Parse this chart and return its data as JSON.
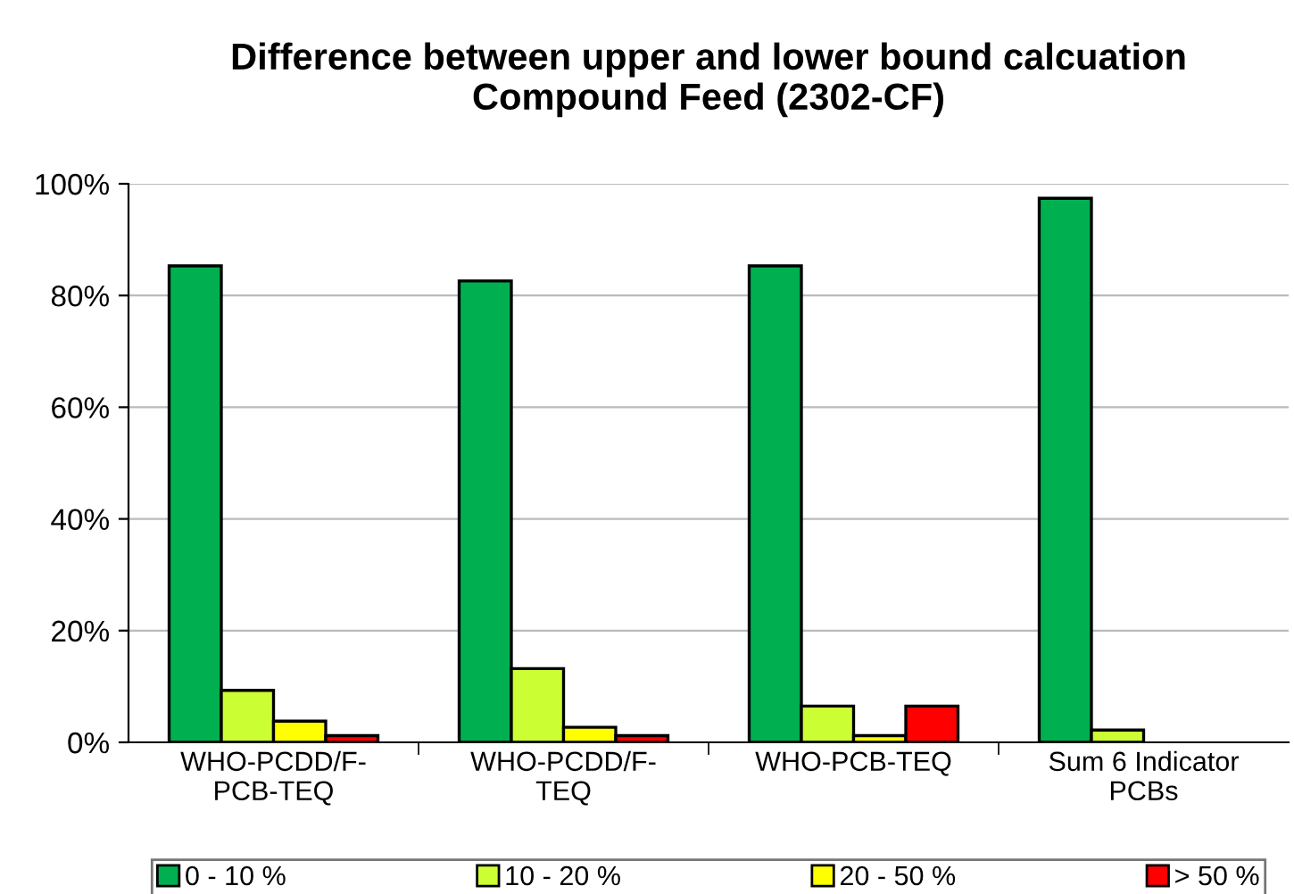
{
  "chart_data": {
    "type": "bar",
    "title": "Difference between upper and lower bound calcuation\nCompound Feed (2302-CF)",
    "categories": [
      "WHO-PCDD/F-\nPCB-TEQ",
      "WHO-PCDD/F-\nTEQ",
      "WHO-PCB-TEQ",
      "Sum 6 Indicator\nPCBs"
    ],
    "series": [
      {
        "name": "0 - 10 %",
        "color": "#00b050",
        "values": [
          85.3,
          82.6,
          85.3,
          97.4
        ]
      },
      {
        "name": "10 - 20 %",
        "color": "#ccff33",
        "values": [
          9.3,
          13.2,
          6.5,
          2.2
        ]
      },
      {
        "name": "20 - 50 %",
        "color": "#ffff00",
        "values": [
          3.8,
          2.7,
          1.2,
          null
        ]
      },
      {
        "name": "> 50 %",
        "color": "#ff0000",
        "values": [
          1.2,
          1.2,
          6.5,
          null
        ]
      }
    ],
    "ylim": [
      0,
      100
    ],
    "yticks": [
      {
        "value": 0,
        "label": "0%"
      },
      {
        "value": 20,
        "label": "20%"
      },
      {
        "value": 40,
        "label": "40%"
      },
      {
        "value": 60,
        "label": "60%"
      },
      {
        "value": 80,
        "label": "80%"
      },
      {
        "value": 100,
        "label": "100%"
      }
    ],
    "grid": "y",
    "legend": "bottom"
  }
}
